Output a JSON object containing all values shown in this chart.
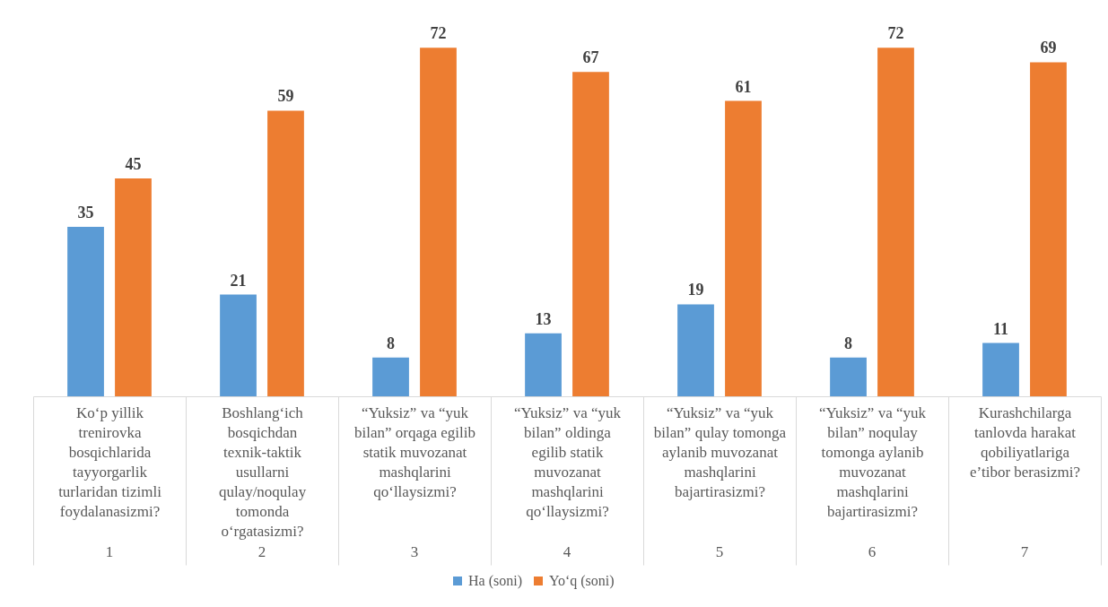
{
  "chart_data": {
    "type": "bar",
    "categories": [
      "Ko‘p yillik trenirovka bosqichlarida tayyorgarlik turlaridan tizimli foydalanasizmi?",
      "Boshlang‘ich bosqichdan texnik-taktik usullarni qulay/noqulay tomonda o‘rgatasizmi?",
      "“Yuksiz” va “yuk bilan” orqaga egilib statik muvozanat mashqlarini qo‘llaysizmi?",
      "“Yuksiz” va “yuk bilan” oldinga egilib statik muvozanat mashqlarini qo‘llaysizmi?",
      "“Yuksiz” va “yuk bilan” qulay tomonga aylanib muvozanat mashqlarini bajartirasizmi?",
      "“Yuksiz” va “yuk bilan” noqulay tomonga aylanib muvozanat mashqlarini bajartirasizmi?",
      "Kurashchilarga tanlovda harakat qobiliyatlariga e’tibor berasizmi?"
    ],
    "series": [
      {
        "name": "Ha (soni)",
        "color": "#5b9bd5",
        "values": [
          35,
          21,
          8,
          13,
          19,
          8,
          11
        ]
      },
      {
        "name": "Yo‘q (soni)",
        "color": "#ed7d31",
        "values": [
          45,
          59,
          72,
          67,
          61,
          72,
          69
        ]
      }
    ],
    "annotations": [
      "1",
      "2",
      "3",
      "4",
      "5",
      "6",
      "7"
    ],
    "data_labels": true,
    "grid": false,
    "legend": "bottom"
  }
}
